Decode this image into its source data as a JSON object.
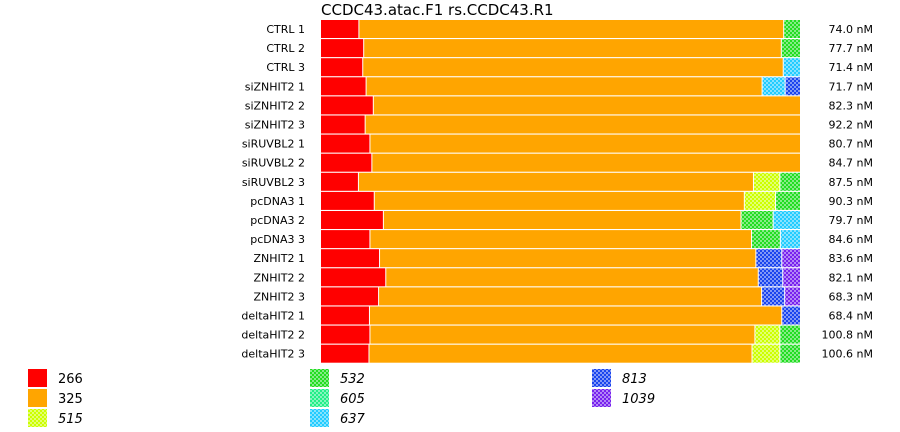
{
  "chart_data": {
    "type": "bar",
    "orientation": "horizontal-stacked-100",
    "title": "CCDC43.atac.F1  rs.CCDC43.R1",
    "categories": [
      "CTRL 1",
      "CTRL 2",
      "CTRL 3",
      "siZNHIT2 1",
      "siZNHIT2 2",
      "siZNHIT2 3",
      "siRUVBL2 1",
      "siRUVBL2 2",
      "siRUVBL2 3",
      "pcDNA3 1",
      "pcDNA3 2",
      "pcDNA3 3",
      "ZNHIT2 1",
      "ZNHIT2 2",
      "ZNHIT2 3",
      "deltaHIT2 1",
      "deltaHIT2 2",
      "deltaHIT2 3"
    ],
    "concentrations": [
      "74.0 nM",
      "77.7 nM",
      "71.4 nM",
      "71.7 nM",
      "82.3 nM",
      "92.2 nM",
      "80.7 nM",
      "84.7 nM",
      "87.5 nM",
      "90.3 nM",
      "79.7 nM",
      "84.6 nM",
      "83.6 nM",
      "82.1 nM",
      "68.3 nM",
      "68.4 nM",
      "100.8 nM",
      "100.6 nM"
    ],
    "series": [
      {
        "name": "266",
        "color": "#ff0000",
        "pattern": "solid",
        "values": [
          8.0,
          9.0,
          8.8,
          9.5,
          11.0,
          9.3,
          10.3,
          10.7,
          7.9,
          11.2,
          13.1,
          10.3,
          12.3,
          13.6,
          12.1,
          10.2,
          10.3,
          10.1
        ]
      },
      {
        "name": "325",
        "color": "#ffa500",
        "pattern": "solid",
        "values": [
          88.5,
          87.0,
          87.6,
          82.5,
          89.0,
          90.7,
          89.7,
          89.3,
          82.3,
          77.1,
          74.5,
          79.5,
          78.4,
          77.6,
          79.8,
          85.9,
          80.2,
          79.8
        ]
      },
      {
        "name": "515",
        "color": "#ccff00",
        "pattern": "checker",
        "values": [
          0,
          0,
          0,
          0,
          0,
          0,
          0,
          0,
          5.5,
          6.5,
          0,
          0,
          0,
          0,
          0,
          0,
          5.2,
          5.8
        ]
      },
      {
        "name": "532",
        "color": "#22dd22",
        "pattern": "checker",
        "values": [
          3.5,
          4.0,
          0,
          0,
          0,
          0,
          0,
          0,
          4.3,
          5.2,
          6.7,
          6.0,
          0,
          0,
          0,
          0,
          4.3,
          4.3
        ]
      },
      {
        "name": "605",
        "color": "#22ee88",
        "pattern": "checker",
        "values": [
          0,
          0,
          0,
          0,
          0,
          0,
          0,
          0,
          0,
          0,
          0,
          0,
          0,
          0,
          0,
          0,
          0,
          0
        ]
      },
      {
        "name": "637",
        "color": "#22ccff",
        "pattern": "checker",
        "values": [
          0,
          0,
          3.6,
          4.8,
          0,
          0,
          0,
          0,
          0,
          0,
          5.7,
          4.2,
          0,
          0,
          0,
          0,
          0,
          0
        ]
      },
      {
        "name": "813",
        "color": "#1a44ee",
        "pattern": "checker",
        "values": [
          0,
          0,
          0,
          3.2,
          0,
          0,
          0,
          0,
          0,
          0,
          0,
          0,
          5.4,
          5.1,
          4.8,
          3.9,
          0,
          0
        ]
      },
      {
        "name": "1039",
        "color": "#7722ee",
        "pattern": "checker",
        "values": [
          0,
          0,
          0,
          0,
          0,
          0,
          0,
          0,
          0,
          0,
          0,
          0,
          3.9,
          3.7,
          3.3,
          0,
          0,
          0
        ]
      }
    ],
    "xlim": [
      0,
      100
    ],
    "legend": {
      "position": "bottom",
      "columns": [
        [
          "266",
          "325",
          "515"
        ],
        [
          "532",
          "605",
          "637"
        ],
        [
          "813",
          "1039"
        ]
      ]
    }
  }
}
